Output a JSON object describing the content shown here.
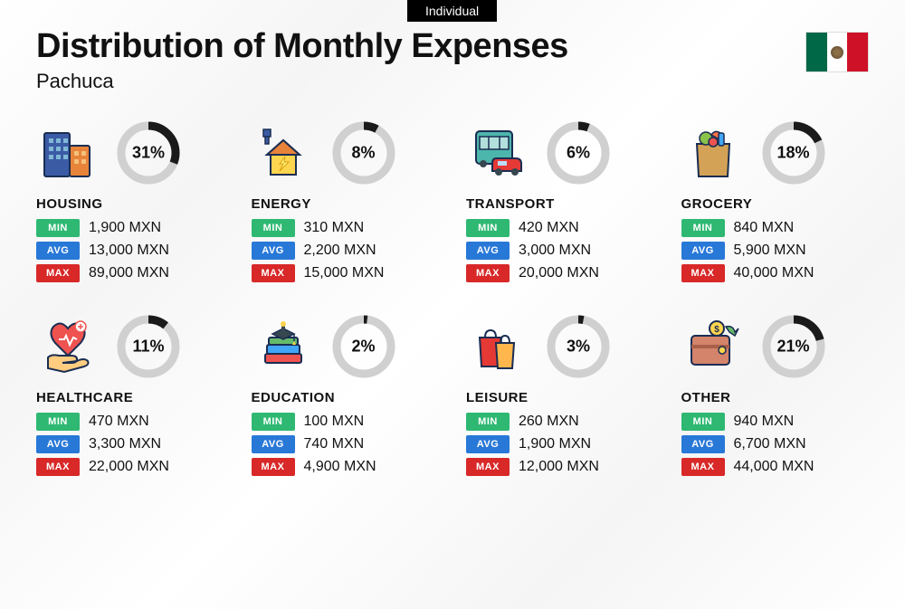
{
  "tag": "Individual",
  "title": "Distribution of Monthly Expenses",
  "subtitle": "Pachuca",
  "currency": "MXN",
  "badges": {
    "min": "MIN",
    "avg": "AVG",
    "max": "MAX"
  },
  "badge_colors": {
    "min": "#2eb872",
    "avg": "#2878d8",
    "max": "#d82828"
  },
  "donut": {
    "bg_color": "#d0d0d0",
    "fg_color": "#1a1a1a",
    "stroke_width": 9
  },
  "flag": {
    "left": "#006847",
    "mid": "#ffffff",
    "right": "#ce1126"
  },
  "categories": [
    {
      "name": "HOUSING",
      "percent": 31,
      "min": "1,900",
      "avg": "13,000",
      "max": "89,000",
      "icon": "buildings-icon"
    },
    {
      "name": "ENERGY",
      "percent": 8,
      "min": "310",
      "avg": "2,200",
      "max": "15,000",
      "icon": "energy-house-icon"
    },
    {
      "name": "TRANSPORT",
      "percent": 6,
      "min": "420",
      "avg": "3,000",
      "max": "20,000",
      "icon": "bus-car-icon"
    },
    {
      "name": "GROCERY",
      "percent": 18,
      "min": "840",
      "avg": "5,900",
      "max": "40,000",
      "icon": "grocery-bag-icon"
    },
    {
      "name": "HEALTHCARE",
      "percent": 11,
      "min": "470",
      "avg": "3,300",
      "max": "22,000",
      "icon": "heart-hand-icon"
    },
    {
      "name": "EDUCATION",
      "percent": 2,
      "min": "100",
      "avg": "740",
      "max": "4,900",
      "icon": "grad-books-icon"
    },
    {
      "name": "LEISURE",
      "percent": 3,
      "min": "260",
      "avg": "1,900",
      "max": "12,000",
      "icon": "shopping-bags-icon"
    },
    {
      "name": "OTHER",
      "percent": 21,
      "min": "940",
      "avg": "6,700",
      "max": "44,000",
      "icon": "wallet-icon"
    }
  ]
}
